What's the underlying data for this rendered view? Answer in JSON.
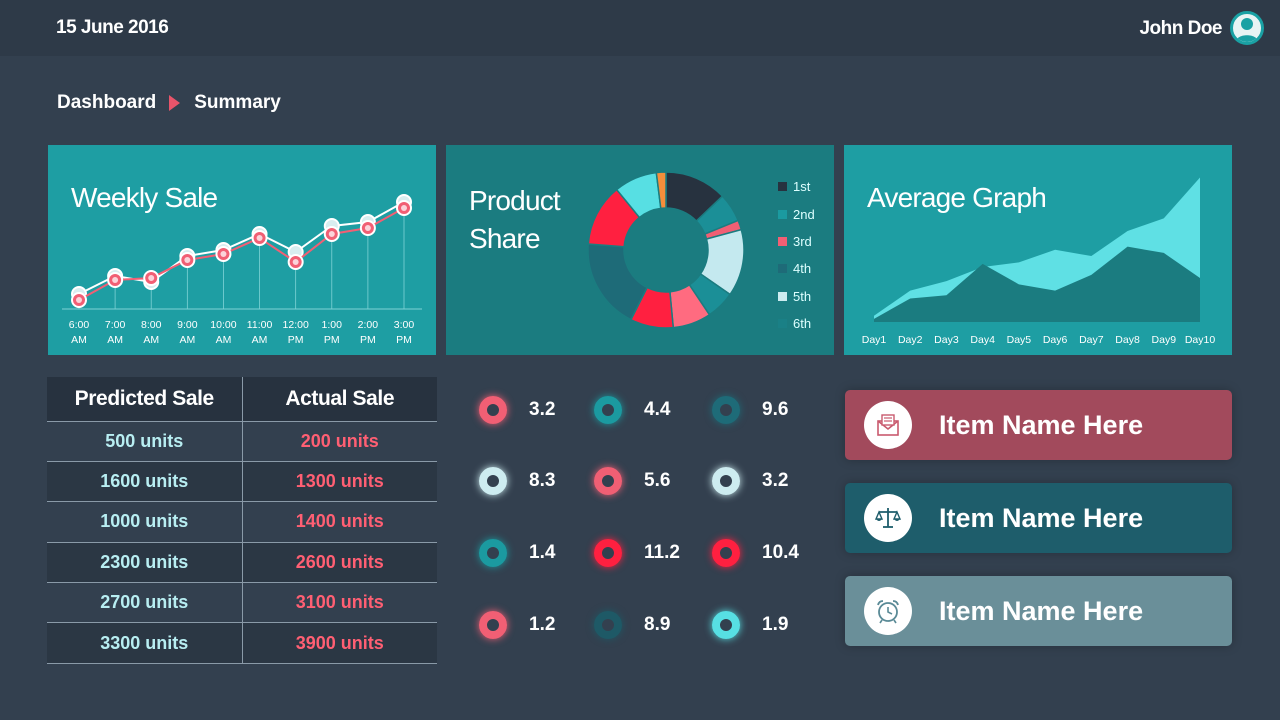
{
  "header": {
    "date": "15 June 2016",
    "user_name": "John Doe"
  },
  "breadcrumb": {
    "first": "Dashboard",
    "second": "Summary"
  },
  "panels": {
    "weekly_sale_title": "Weekly Sale",
    "product_share_title_line1": "Product",
    "product_share_title_line2": "Share",
    "average_graph_title": "Average Graph"
  },
  "colors": {
    "teal": "#1e9ea3",
    "dark_teal": "#1b7c80",
    "pink": "#ff5f73",
    "red": "#ff2040",
    "bg": "#33404f"
  },
  "chart_data": [
    {
      "type": "line",
      "title": "Weekly Sale",
      "x": [
        "6:00 AM",
        "7:00 AM",
        "8:00 AM",
        "9:00 AM",
        "10:00 AM",
        "11:00 AM",
        "12:00 PM",
        "1:00 PM",
        "2:00 PM",
        "3:00 PM"
      ],
      "x_lines": [
        [
          "6:00",
          "AM"
        ],
        [
          "7:00",
          "AM"
        ],
        [
          "8:00",
          "AM"
        ],
        [
          "9:00",
          "AM"
        ],
        [
          "10:00",
          "AM"
        ],
        [
          "11:00",
          "AM"
        ],
        [
          "12:00",
          "PM"
        ],
        [
          "1:00",
          "PM"
        ],
        [
          "2:00",
          "PM"
        ],
        [
          "3:00",
          "PM"
        ]
      ],
      "series": [
        {
          "values": [
            3,
            12,
            9,
            22,
            25,
            33,
            24,
            37,
            39,
            49
          ],
          "color": "#ffffff",
          "marker": "#d8eef0"
        },
        {
          "values": [
            0,
            10,
            11,
            20,
            23,
            31,
            19,
            33,
            36,
            46
          ],
          "color": "#f15f74",
          "marker": "#f15f74"
        }
      ],
      "ylim": [
        -5,
        55
      ],
      "grid": false
    },
    {
      "type": "pie",
      "title": "Product Share",
      "donut": true,
      "legend": [
        "1st",
        "2nd",
        "3rd",
        "4th",
        "5th",
        "6th"
      ],
      "legend_colors": [
        "#27323f",
        "#1b9aa0",
        "#f15f74",
        "#1e6b78",
        "#cdecf0",
        "#1a8086"
      ],
      "slices": [
        {
          "value": 13,
          "color": "#27323f"
        },
        {
          "value": 6,
          "color": "#1b8f97"
        },
        {
          "value": 2,
          "color": "#f15f74"
        },
        {
          "value": 14,
          "color": "#c4e9ef"
        },
        {
          "value": 6,
          "color": "#1b8f97"
        },
        {
          "value": 8,
          "color": "#ff6b80"
        },
        {
          "value": 9,
          "color": "#ff2040"
        },
        {
          "value": 19,
          "color": "#1e6b78"
        },
        {
          "value": 13,
          "color": "#ff2040"
        },
        {
          "value": 9,
          "color": "#57dfe3"
        },
        {
          "value": 2,
          "color": "#f58e3b"
        }
      ]
    },
    {
      "type": "area",
      "title": "Average Graph",
      "x": [
        "Day1",
        "Day2",
        "Day3",
        "Day4",
        "Day5",
        "Day6",
        "Day7",
        "Day8",
        "Day9",
        "Day10"
      ],
      "series": [
        {
          "values": [
            4,
            20,
            26,
            35,
            38,
            46,
            42,
            58,
            66,
            92
          ],
          "color": "#5fe0e4"
        },
        {
          "values": [
            2,
            15,
            17,
            37,
            24,
            20,
            30,
            48,
            44,
            28
          ],
          "color": "#1b7c80"
        }
      ],
      "ylim": [
        0,
        100
      ]
    }
  ],
  "table": {
    "headers": [
      "Predicted  Sale",
      "Actual  Sale"
    ],
    "rows": [
      [
        "500 units",
        "200 units"
      ],
      [
        "1600 units",
        "1300 units"
      ],
      [
        "1000 units",
        "1400 units"
      ],
      [
        "2300 units",
        "2600 units"
      ],
      [
        "2700 units",
        "3100 units"
      ],
      [
        "3300 units",
        "3900 units"
      ]
    ]
  },
  "metrics": [
    {
      "value": "3.2",
      "color": "#f15f74"
    },
    {
      "value": "4.4",
      "color": "#1b9aa0"
    },
    {
      "value": "9.6",
      "color": "#1e6b78"
    },
    {
      "value": "8.3",
      "color": "#cdecf0"
    },
    {
      "value": "5.6",
      "color": "#f15f74"
    },
    {
      "value": "3.2",
      "color": "#cdecf0"
    },
    {
      "value": "1.4",
      "color": "#1b9aa0"
    },
    {
      "value": "11.2",
      "color": "#ff2040"
    },
    {
      "value": "10.4",
      "color": "#ff2040"
    },
    {
      "value": "1.2",
      "color": "#f15f74"
    },
    {
      "value": "8.9",
      "color": "#1e5966"
    },
    {
      "value": "1.9",
      "color": "#57dfe3"
    }
  ],
  "items": [
    {
      "label": "Item Name Here",
      "icon": "envelope-icon",
      "bg": "#a24a5c",
      "icon_color": "#c95a6e"
    },
    {
      "label": "Item Name Here",
      "icon": "scales-icon",
      "bg": "#1e5d6b",
      "icon_color": "#1e5d6b"
    },
    {
      "label": "Item Name Here",
      "icon": "alarm-clock-icon",
      "bg": "#6a8f99",
      "icon_color": "#5a8a96"
    }
  ]
}
